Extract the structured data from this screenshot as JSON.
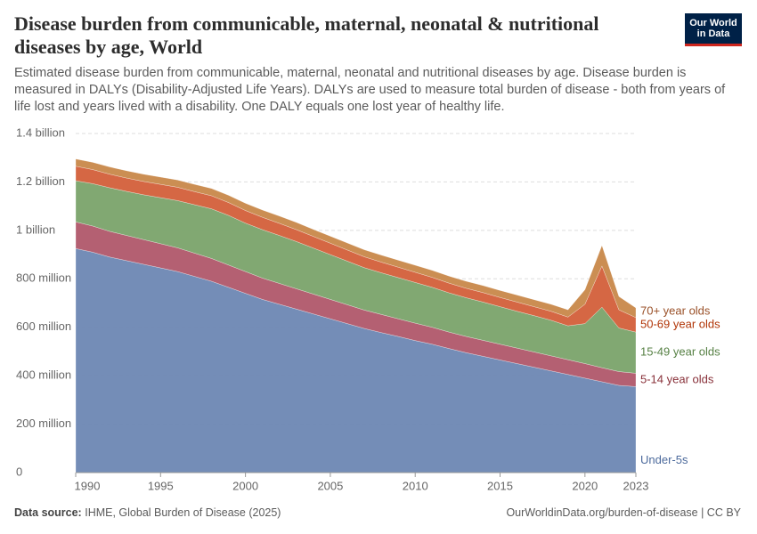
{
  "chart_data": {
    "type": "area",
    "title": "Disease burden from communicable, maternal, neonatal & nutritional diseases by age, World",
    "subtitle": "Estimated disease burden from communicable, maternal, neonatal and nutritional diseases by age. Disease burden is measured in DALYs (Disability-Adjusted Life Years). DALYs are used to measure total burden of disease - both from years of life lost and years lived with a disability. One DALY equals one lost year of healthy life.",
    "logo": [
      "Our World",
      "in Data"
    ],
    "source_label": "Data source:",
    "source": "IHME, Global Burden of Disease (2025)",
    "footer": "OurWorldinData.org/burden-of-disease | CC BY",
    "x": [
      1990,
      1991,
      1992,
      1993,
      1994,
      1995,
      1996,
      1997,
      1998,
      1999,
      2000,
      2001,
      2002,
      2003,
      2004,
      2005,
      2006,
      2007,
      2008,
      2009,
      2010,
      2011,
      2012,
      2013,
      2014,
      2015,
      2016,
      2017,
      2018,
      2019,
      2020,
      2021,
      2022,
      2023
    ],
    "xlim": [
      1990,
      2023
    ],
    "xticks": [
      1990,
      1995,
      2000,
      2005,
      2010,
      2015,
      2020,
      2023
    ],
    "ylim": [
      0,
      1400000000
    ],
    "yticks": [
      0,
      {
        "value": 200000000,
        "label": "200 million"
      },
      {
        "value": 400000000,
        "label": "400 million"
      },
      {
        "value": 600000000,
        "label": "600 million"
      },
      {
        "value": 800000000,
        "label": "800 million"
      },
      {
        "value": 1000000000,
        "label": "1 billion"
      },
      {
        "value": 1200000000,
        "label": "1.2 billion"
      },
      {
        "value": 1400000000,
        "label": "1.4 billion"
      }
    ],
    "grid": true,
    "series": [
      {
        "name": "Under-5s",
        "color": "#6d87b3",
        "label_color": "#4c6a9c",
        "values": [
          925000000,
          910000000,
          890000000,
          875000000,
          860000000,
          845000000,
          830000000,
          810000000,
          790000000,
          765000000,
          740000000,
          715000000,
          695000000,
          675000000,
          655000000,
          635000000,
          615000000,
          595000000,
          578000000,
          562000000,
          545000000,
          530000000,
          512000000,
          495000000,
          480000000,
          465000000,
          450000000,
          435000000,
          420000000,
          405000000,
          390000000,
          375000000,
          360000000,
          355000000
        ]
      },
      {
        "name": "5-14 year olds",
        "color": "#b0576a",
        "label_color": "#883039",
        "values": [
          110000000,
          108000000,
          106000000,
          104000000,
          102000000,
          100000000,
          98000000,
          96000000,
          94000000,
          92000000,
          90000000,
          88000000,
          86000000,
          84000000,
          82000000,
          80000000,
          78000000,
          76000000,
          75000000,
          73000000,
          72000000,
          70000000,
          68000000,
          67000000,
          66000000,
          65000000,
          64000000,
          63000000,
          62000000,
          61000000,
          60000000,
          58000000,
          57000000,
          55000000
        ]
      },
      {
        "name": "15-49 year olds",
        "color": "#7aa36a",
        "label_color": "#578145",
        "values": [
          170000000,
          175000000,
          180000000,
          182000000,
          185000000,
          190000000,
          195000000,
          200000000,
          205000000,
          205000000,
          200000000,
          200000000,
          198000000,
          195000000,
          190000000,
          185000000,
          180000000,
          175000000,
          172000000,
          170000000,
          168000000,
          165000000,
          162000000,
          160000000,
          158000000,
          155000000,
          152000000,
          150000000,
          147000000,
          140000000,
          165000000,
          250000000,
          180000000,
          170000000
        ]
      },
      {
        "name": "50-69 year olds",
        "color": "#d35f3a",
        "label_color": "#b13507",
        "values": [
          60000000,
          58000000,
          56000000,
          55000000,
          55000000,
          55000000,
          55000000,
          54000000,
          54000000,
          53000000,
          52000000,
          51000000,
          50000000,
          49000000,
          48000000,
          47000000,
          46000000,
          45000000,
          44000000,
          43000000,
          42000000,
          41000000,
          40000000,
          39000000,
          39000000,
          38000000,
          38000000,
          37000000,
          37000000,
          36000000,
          80000000,
          170000000,
          75000000,
          60000000
        ]
      },
      {
        "name": "70+ year olds",
        "color": "#c8884a",
        "label_color": "#9a5129",
        "values": [
          30000000,
          30000000,
          30000000,
          30000000,
          30000000,
          30000000,
          30000000,
          30000000,
          30000000,
          30000000,
          30000000,
          30000000,
          30000000,
          30000000,
          29000000,
          29000000,
          29000000,
          29000000,
          29000000,
          29000000,
          29000000,
          29000000,
          29000000,
          29000000,
          29000000,
          29000000,
          29000000,
          29000000,
          29000000,
          30000000,
          60000000,
          85000000,
          55000000,
          40000000
        ]
      }
    ]
  }
}
